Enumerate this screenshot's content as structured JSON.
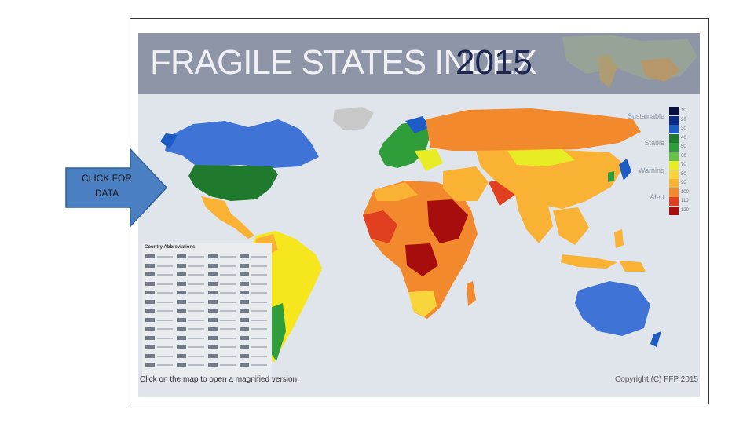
{
  "title": "FRAGILE STATES INDEX",
  "year": "2015",
  "scale": {
    "words": [
      "Sustainable",
      "Stable",
      "Warning",
      "Alert"
    ],
    "levels": [
      {
        "value": "10",
        "color": "#07103e"
      },
      {
        "value": "20",
        "color": "#0b2a82"
      },
      {
        "value": "30",
        "color": "#1d5cc4"
      },
      {
        "value": "40",
        "color": "#1f7a2e"
      },
      {
        "value": "50",
        "color": "#2f9e3a"
      },
      {
        "value": "60",
        "color": "#66c14a"
      },
      {
        "value": "70",
        "color": "#e8ec25"
      },
      {
        "value": "80",
        "color": "#f9d43a"
      },
      {
        "value": "90",
        "color": "#f9b233"
      },
      {
        "value": "100",
        "color": "#f3892d"
      },
      {
        "value": "110",
        "color": "#e0401f"
      },
      {
        "value": "120",
        "color": "#a80d0d"
      }
    ]
  },
  "abbreviations_title": "Country Abbreviations",
  "footer_note": "Click on the map to open a magnified version.",
  "copyright": "Copyright (C) FFP 2015",
  "callout": {
    "label": "CLICK FOR DATA",
    "icon": "arrow-right-icon",
    "fill": "#4a7fc1"
  }
}
